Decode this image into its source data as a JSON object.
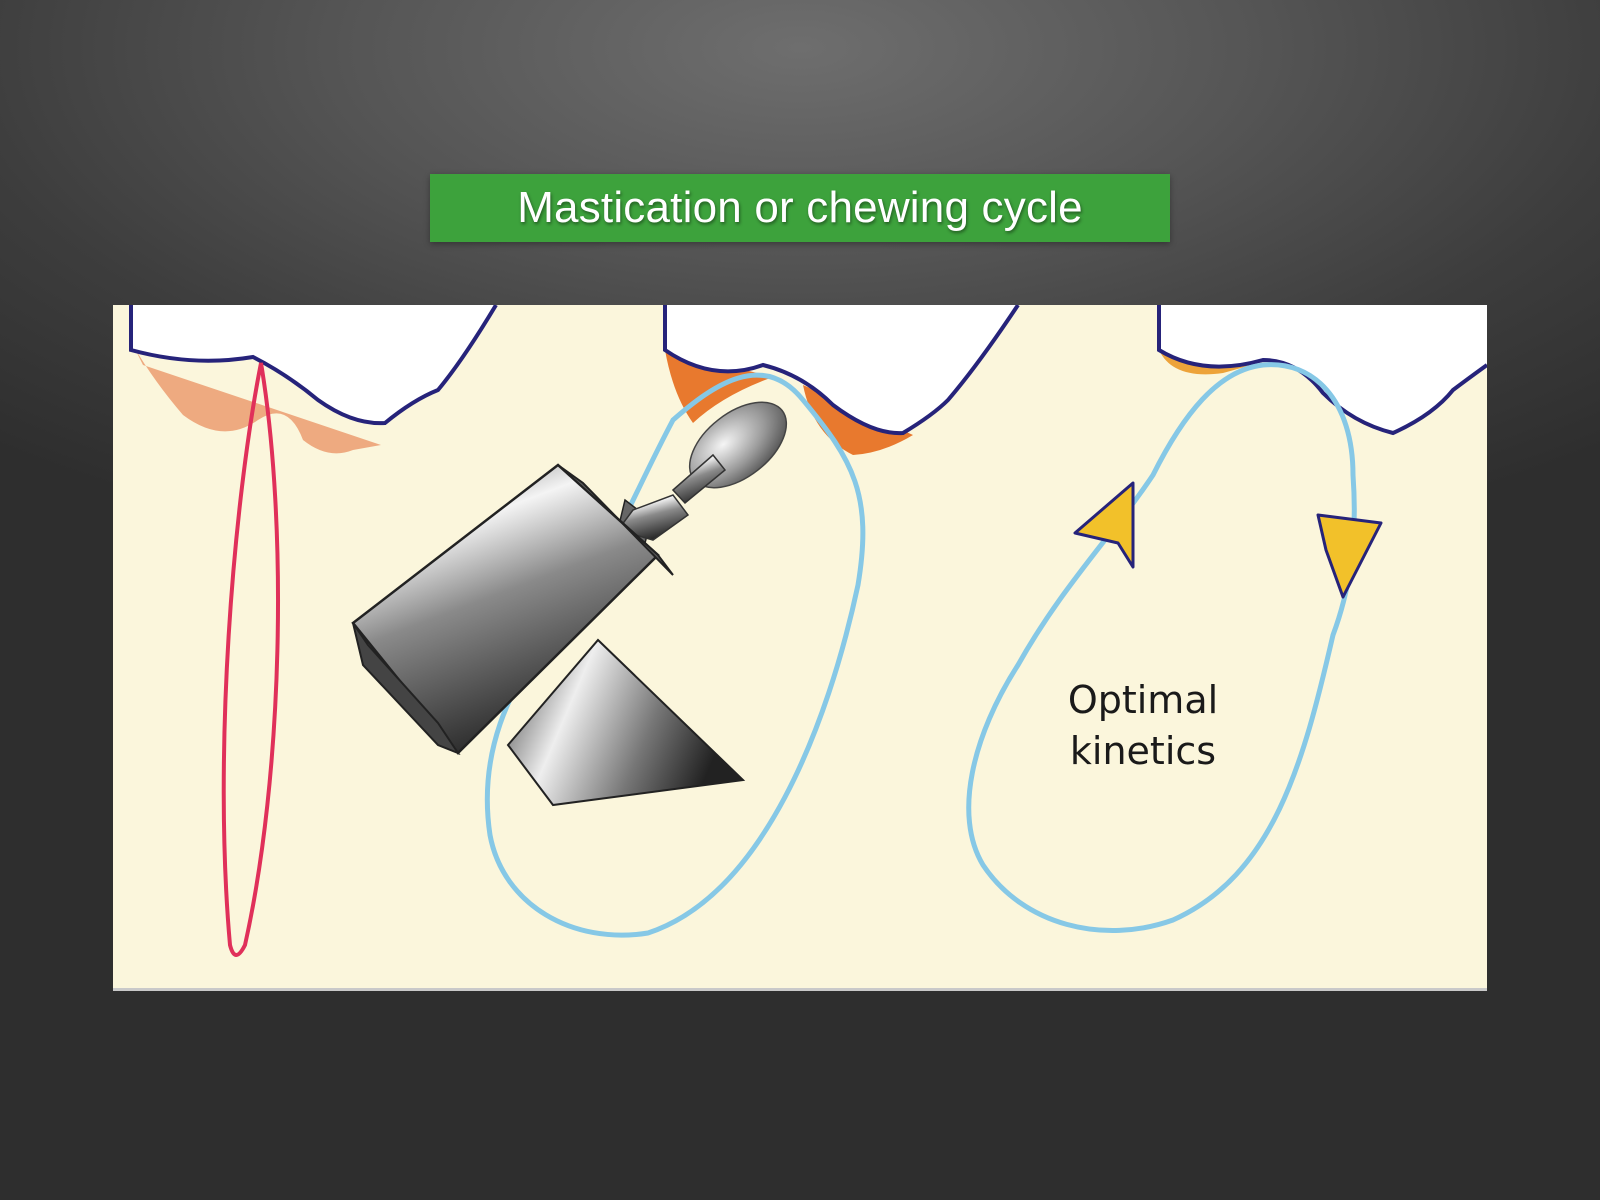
{
  "title": "Mastication or chewing cycle",
  "diagram": {
    "caption_line1": "Optimal",
    "caption_line2": "kinetics",
    "colors": {
      "background": "#fbf6dc",
      "tooth_outline": "#26237a",
      "contact_orange": "#e8792e",
      "contact_light": "#eeaa80",
      "red_cycle": "#e0305a",
      "blue_cycle": "#86c8e6",
      "arrow_fill": "#f2c12a",
      "banner": "#3da23c"
    },
    "icons": [
      "tooth-icon",
      "dental-handpiece-icon",
      "arrow-up-icon",
      "arrow-down-icon"
    ]
  }
}
